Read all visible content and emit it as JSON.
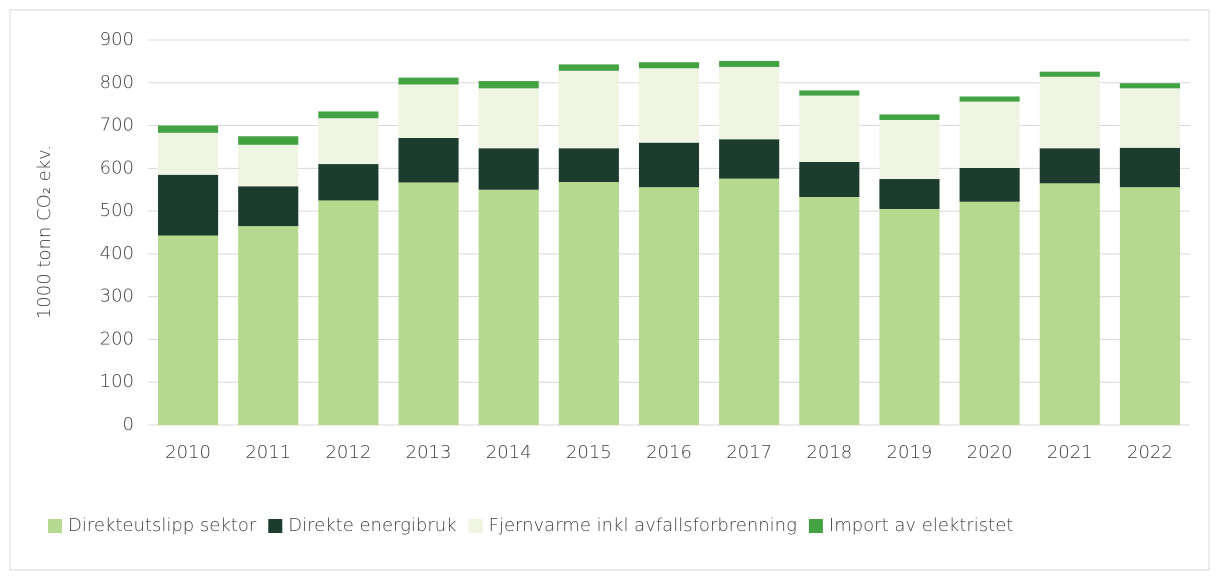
{
  "chart_data": {
    "type": "bar",
    "stacked": true,
    "ylabel": "1000 tonn CO₂ ekv.",
    "categories": [
      "2010",
      "2011",
      "2012",
      "2013",
      "2014",
      "2015",
      "2016",
      "2017",
      "2018",
      "2019",
      "2020",
      "2021",
      "2022"
    ],
    "series": [
      {
        "name": "Direkteutslipp sektor",
        "color": "#b5d98f",
        "values": [
          443,
          465,
          525,
          567,
          550,
          568,
          556,
          576,
          533,
          505,
          522,
          565,
          556
        ]
      },
      {
        "name": "Direkte energibruk",
        "color": "#1c3d2e",
        "values": [
          142,
          93,
          85,
          104,
          97,
          79,
          104,
          92,
          82,
          70,
          79,
          82,
          92
        ]
      },
      {
        "name": "Fjernvarme inkl avfallsforbrenning",
        "color": "#eff4e3",
        "values": [
          98,
          97,
          107,
          125,
          140,
          181,
          174,
          169,
          155,
          138,
          155,
          167,
          139
        ]
      },
      {
        "name": "Import av elektristet",
        "color": "#43a343",
        "values": [
          17,
          20,
          16,
          16,
          17,
          15,
          14,
          14,
          12,
          13,
          12,
          12,
          12
        ]
      }
    ],
    "ylim": [
      0,
      900
    ],
    "yticks": [
      0,
      100,
      200,
      300,
      400,
      500,
      600,
      700,
      800,
      900
    ],
    "grid": true,
    "legend": "bottom"
  }
}
